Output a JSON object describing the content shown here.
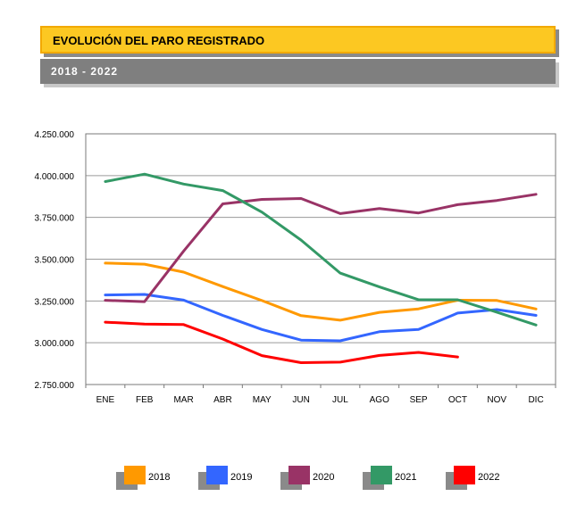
{
  "header": {
    "title": "EVOLUCIÓN DEL PARO REGISTRADO",
    "subtitle": "2018 - 2022"
  },
  "chart_data": {
    "type": "line",
    "title": "EVOLUCIÓN DEL PARO REGISTRADO",
    "subtitle": "2018 - 2022",
    "categories": [
      "ENE",
      "FEB",
      "MAR",
      "ABR",
      "MAY",
      "JUN",
      "JUL",
      "AGO",
      "SEP",
      "OCT",
      "NOV",
      "DIC"
    ],
    "ylim": [
      2750000,
      4250000
    ],
    "yticks": [
      2750000,
      3000000,
      3250000,
      3500000,
      3750000,
      4000000,
      4250000
    ],
    "ytick_labels": [
      "2.750.000",
      "3.000.000",
      "3.250.000",
      "3.500.000",
      "3.750.000",
      "4.000.000",
      "4.250.000"
    ],
    "grid": "horizontal",
    "legend_position": "bottom",
    "series": [
      {
        "name": "2018",
        "color": "#ff9900",
        "values": [
          3476528,
          3470248,
          3422551,
          3335868,
          3252130,
          3162162,
          3135021,
          3182068,
          3202509,
          3254703,
          3252867,
          3202297
        ]
      },
      {
        "name": "2019",
        "color": "#3366ff",
        "values": [
          3285761,
          3289040,
          3255084,
          3163566,
          3079491,
          3015686,
          3011433,
          3065804,
          3079711,
          3177659,
          3198184,
          3163605
        ]
      },
      {
        "name": "2020",
        "color": "#993366",
        "values": [
          3253853,
          3246047,
          3548312,
          3831203,
          3857776,
          3862883,
          3773034,
          3802814,
          3776485,
          3826043,
          3851312,
          3888137
        ]
      },
      {
        "name": "2021",
        "color": "#339966",
        "values": [
          3964353,
          4008789,
          3949640,
          3910628,
          3781250,
          3614339,
          3416498,
          3333915,
          3257802,
          3257068,
          3182687,
          3105905
        ]
      },
      {
        "name": "2022",
        "color": "#ff0000",
        "values": [
          3123078,
          3111684,
          3108763,
          3022503,
          2922991,
          2880582,
          2883812,
          2924240,
          2941919,
          2914892,
          null,
          null
        ]
      }
    ]
  }
}
